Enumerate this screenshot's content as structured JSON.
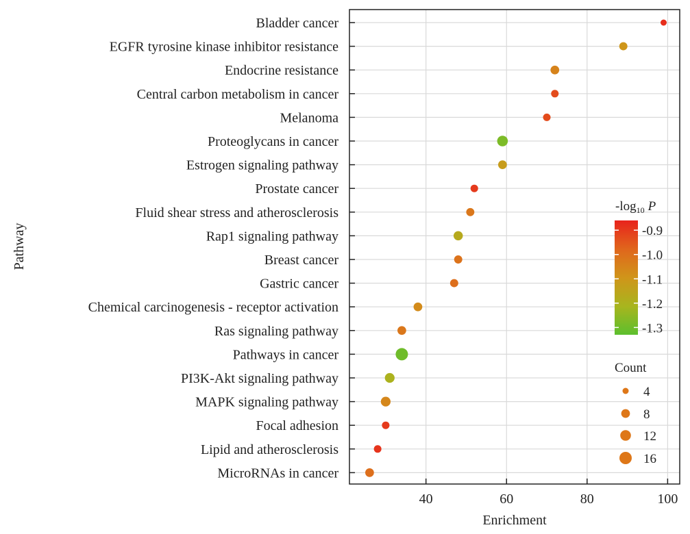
{
  "chart_data": {
    "type": "scatter",
    "xlabel": "Enrichment",
    "ylabel": "Pathway",
    "xlim": [
      21,
      103
    ],
    "xticks": [
      "40",
      "60",
      "80",
      "100"
    ],
    "grid": true,
    "categories": [
      "Bladder cancer",
      "EGFR tyrosine kinase inhibitor resistance",
      "Endocrine resistance",
      "Central carbon metabolism in cancer",
      "Melanoma",
      "Proteoglycans in cancer",
      "Estrogen signaling pathway",
      "Prostate cancer",
      "Fluid shear stress and atherosclerosis",
      "Rap1 signaling pathway",
      "Breast cancer",
      "Gastric cancer",
      "Chemical carcinogenesis - receptor activation",
      "Ras signaling pathway",
      "Pathways in cancer",
      "PI3K-Akt signaling pathway",
      "MAPK signaling pathway",
      "Focal adhesion",
      "Lipid and atherosclerosis",
      "MicroRNAs in cancer"
    ],
    "points": [
      {
        "pathway": "Bladder cancer",
        "enrichment": 99,
        "count": 4,
        "neg_log10_p": -0.88
      },
      {
        "pathway": "EGFR tyrosine kinase inhibitor resistance",
        "enrichment": 89,
        "count": 7,
        "neg_log10_p": -1.1
      },
      {
        "pathway": "Endocrine resistance",
        "enrichment": 72,
        "count": 8,
        "neg_log10_p": -1.05
      },
      {
        "pathway": "Central carbon metabolism in cancer",
        "enrichment": 72,
        "count": 6,
        "neg_log10_p": -0.93
      },
      {
        "pathway": "Melanoma",
        "enrichment": 70,
        "count": 6,
        "neg_log10_p": -0.93
      },
      {
        "pathway": "Proteoglycans in cancer",
        "enrichment": 59,
        "count": 12,
        "neg_log10_p": -1.28
      },
      {
        "pathway": "Estrogen signaling pathway",
        "enrichment": 59,
        "count": 8,
        "neg_log10_p": -1.12
      },
      {
        "pathway": "Prostate cancer",
        "enrichment": 52,
        "count": 6,
        "neg_log10_p": -0.9
      },
      {
        "pathway": "Fluid shear stress and atherosclerosis",
        "enrichment": 51,
        "count": 7,
        "neg_log10_p": -1.02
      },
      {
        "pathway": "Rap1 signaling pathway",
        "enrichment": 48,
        "count": 9,
        "neg_log10_p": -1.17
      },
      {
        "pathway": "Breast cancer",
        "enrichment": 48,
        "count": 7,
        "neg_log10_p": -1.01
      },
      {
        "pathway": "Gastric cancer",
        "enrichment": 47,
        "count": 7,
        "neg_log10_p": -1.0
      },
      {
        "pathway": "Chemical carcinogenesis - receptor activation",
        "enrichment": 38,
        "count": 8,
        "neg_log10_p": -1.07
      },
      {
        "pathway": "Ras signaling pathway",
        "enrichment": 34,
        "count": 8,
        "neg_log10_p": -1.02
      },
      {
        "pathway": "Pathways in cancer",
        "enrichment": 34,
        "count": 16,
        "neg_log10_p": -1.3
      },
      {
        "pathway": "PI3K-Akt signaling pathway",
        "enrichment": 31,
        "count": 10,
        "neg_log10_p": -1.2
      },
      {
        "pathway": "MAPK signaling pathway",
        "enrichment": 30,
        "count": 10,
        "neg_log10_p": -1.06
      },
      {
        "pathway": "Focal adhesion",
        "enrichment": 30,
        "count": 6,
        "neg_log10_p": -0.9
      },
      {
        "pathway": "Lipid and atherosclerosis",
        "enrichment": 28,
        "count": 6,
        "neg_log10_p": -0.89
      },
      {
        "pathway": "MicroRNAs in cancer",
        "enrichment": 26,
        "count": 8,
        "neg_log10_p": -1.0
      }
    ],
    "color_legend": {
      "title_prefix": "-log",
      "title_subscript": "10",
      "title_suffix": "P",
      "range": [
        -1.33,
        -0.86
      ],
      "ticks": [
        -0.9,
        -1.0,
        -1.1,
        -1.2,
        -1.3
      ],
      "tick_labels": [
        "-0.9",
        "-1.0",
        "-1.1",
        "-1.2",
        "-1.3"
      ],
      "colors": [
        "#e8231c",
        "#e0661c",
        "#d0951a",
        "#a8b51e",
        "#5cbf2e"
      ]
    },
    "size_legend": {
      "title": "Count",
      "values": [
        4,
        8,
        12,
        16
      ],
      "labels": [
        "4",
        "8",
        "12",
        "16"
      ],
      "point_color": "#de7718"
    }
  }
}
